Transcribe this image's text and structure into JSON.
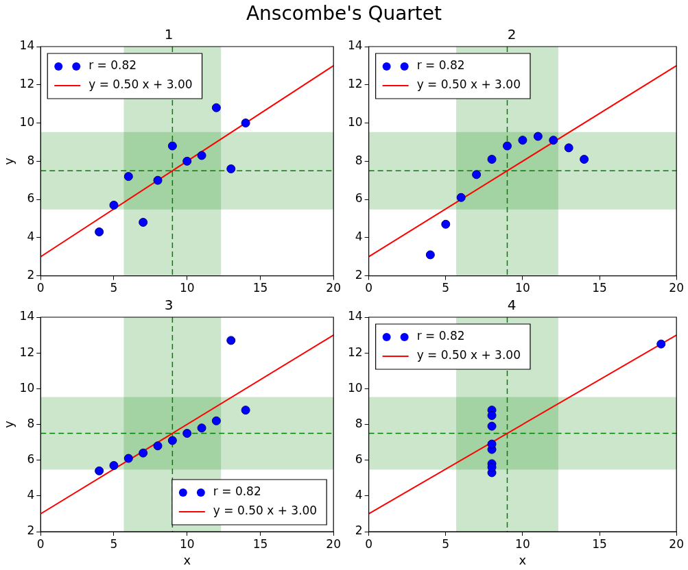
{
  "chart_data": [
    {
      "type": "other",
      "title": "Anscombe's Quartet"
    },
    {
      "type": "scatter",
      "title": "1",
      "ylabel": "y",
      "xlim": [
        0,
        20
      ],
      "xticks": [
        0,
        5,
        10,
        15,
        20
      ],
      "ylim": [
        2,
        14
      ],
      "yticks": [
        2,
        4,
        6,
        8,
        10,
        12,
        14
      ],
      "grid": false,
      "legend": "top left",
      "series": [
        {
          "name": "r = 0.82",
          "type": "scatter",
          "color": "#0000ff",
          "marker": "circle",
          "x": [
            10,
            8,
            13,
            9,
            11,
            14,
            6,
            4,
            12,
            7,
            5
          ],
          "values": [
            8.0,
            7.0,
            7.6,
            8.8,
            8.3,
            10.0,
            7.2,
            4.3,
            10.8,
            4.8,
            5.7
          ]
        },
        {
          "name": "y = 0.50 x + 3.00",
          "type": "line",
          "color": "#ff0000",
          "marker": "none",
          "line_style": "solid",
          "x": [
            0,
            20
          ],
          "values": [
            3,
            13
          ]
        }
      ],
      "bands": [
        {
          "axis": "x",
          "from": 5.68,
          "to": 12.32,
          "color": "#008000"
        },
        {
          "axis": "y",
          "from": 5.47,
          "to": 9.53,
          "color": "#008000"
        }
      ],
      "ref_lines": [
        {
          "axis": "x",
          "value": 9,
          "color": "#008000",
          "line_style": "dashed"
        },
        {
          "axis": "y",
          "value": 7.5,
          "color": "#008000",
          "line_style": "dashed"
        }
      ]
    },
    {
      "type": "scatter",
      "title": "2",
      "xlim": [
        0,
        20
      ],
      "xticks": [
        0,
        5,
        10,
        15,
        20
      ],
      "ylim": [
        2,
        14
      ],
      "yticks": [
        2,
        4,
        6,
        8,
        10,
        12,
        14
      ],
      "grid": false,
      "legend": "top left",
      "series": [
        {
          "name": "r = 0.82",
          "type": "scatter",
          "color": "#0000ff",
          "marker": "circle",
          "x": [
            10,
            8,
            13,
            9,
            11,
            14,
            6,
            4,
            12,
            7,
            5
          ],
          "values": [
            9.1,
            8.1,
            8.7,
            8.8,
            9.3,
            8.1,
            6.1,
            3.1,
            9.1,
            7.3,
            4.7
          ]
        },
        {
          "name": "y = 0.50 x + 3.00",
          "type": "line",
          "color": "#ff0000",
          "marker": "none",
          "line_style": "solid",
          "x": [
            0,
            20
          ],
          "values": [
            3,
            13
          ]
        }
      ],
      "bands": [
        {
          "axis": "x",
          "from": 5.68,
          "to": 12.32,
          "color": "#008000"
        },
        {
          "axis": "y",
          "from": 5.47,
          "to": 9.53,
          "color": "#008000"
        }
      ],
      "ref_lines": [
        {
          "axis": "x",
          "value": 9,
          "color": "#008000",
          "line_style": "dashed"
        },
        {
          "axis": "y",
          "value": 7.5,
          "color": "#008000",
          "line_style": "dashed"
        }
      ]
    },
    {
      "type": "scatter",
      "title": "3",
      "xlabel": "x",
      "ylabel": "y",
      "xlim": [
        0,
        20
      ],
      "xticks": [
        0,
        5,
        10,
        15,
        20
      ],
      "ylim": [
        2,
        14
      ],
      "yticks": [
        2,
        4,
        6,
        8,
        10,
        12,
        14
      ],
      "grid": false,
      "legend": "bottom right",
      "series": [
        {
          "name": "r = 0.82",
          "type": "scatter",
          "color": "#0000ff",
          "marker": "circle",
          "x": [
            10,
            8,
            13,
            9,
            11,
            14,
            6,
            4,
            12,
            7,
            5
          ],
          "values": [
            7.5,
            6.8,
            12.7,
            7.1,
            7.8,
            8.8,
            6.1,
            5.4,
            8.2,
            6.4,
            5.7
          ]
        },
        {
          "name": "y = 0.50 x + 3.00",
          "type": "line",
          "color": "#ff0000",
          "marker": "none",
          "line_style": "solid",
          "x": [
            0,
            20
          ],
          "values": [
            3,
            13
          ]
        }
      ],
      "bands": [
        {
          "axis": "x",
          "from": 5.68,
          "to": 12.32,
          "color": "#008000"
        },
        {
          "axis": "y",
          "from": 5.47,
          "to": 9.53,
          "color": "#008000"
        }
      ],
      "ref_lines": [
        {
          "axis": "x",
          "value": 9,
          "color": "#008000",
          "line_style": "dashed"
        },
        {
          "axis": "y",
          "value": 7.5,
          "color": "#008000",
          "line_style": "dashed"
        }
      ]
    },
    {
      "type": "scatter",
      "title": "4",
      "xlabel": "x",
      "xlim": [
        0,
        20
      ],
      "xticks": [
        0,
        5,
        10,
        15,
        20
      ],
      "ylim": [
        2,
        14
      ],
      "yticks": [
        2,
        4,
        6,
        8,
        10,
        12,
        14
      ],
      "grid": false,
      "legend": "top left",
      "series": [
        {
          "name": "r = 0.82",
          "type": "scatter",
          "color": "#0000ff",
          "marker": "circle",
          "x": [
            8,
            8,
            8,
            8,
            8,
            19,
            8,
            8,
            8
          ],
          "values": [
            6.6,
            5.8,
            8.8,
            8.5,
            5.3,
            12.5,
            5.6,
            7.9,
            6.9
          ]
        },
        {
          "name": "y = 0.50 x + 3.00",
          "type": "line",
          "color": "#ff0000",
          "marker": "none",
          "line_style": "solid",
          "x": [
            0,
            20
          ],
          "values": [
            3,
            13
          ]
        }
      ],
      "bands": [
        {
          "axis": "x",
          "from": 5.68,
          "to": 12.32,
          "color": "#008000"
        },
        {
          "axis": "y",
          "from": 5.47,
          "to": 9.53,
          "color": "#008000"
        }
      ],
      "ref_lines": [
        {
          "axis": "x",
          "value": 9,
          "color": "#008000",
          "line_style": "dashed"
        },
        {
          "axis": "y",
          "value": 7.5,
          "color": "#008000",
          "line_style": "dashed"
        }
      ]
    }
  ]
}
